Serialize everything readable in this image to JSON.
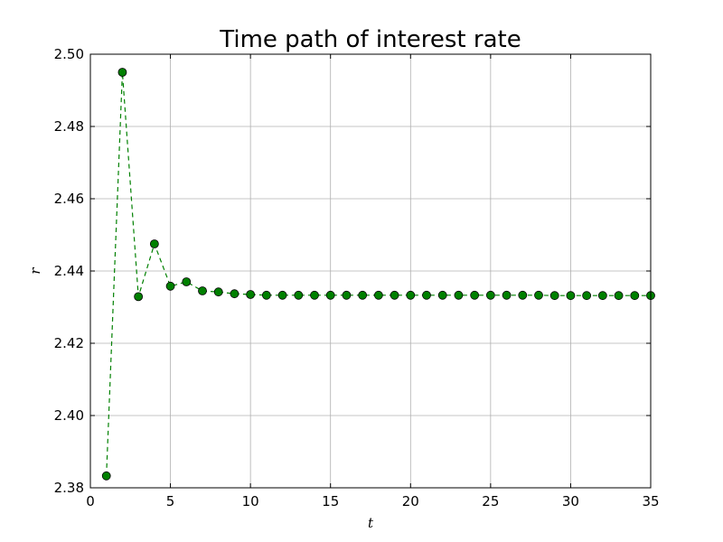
{
  "chart_data": {
    "type": "line",
    "title": "Time path of interest rate",
    "xlabel": "t",
    "ylabel": "r",
    "xlim": [
      0,
      35
    ],
    "ylim": [
      2.38,
      2.5
    ],
    "xticks": [
      0,
      5,
      10,
      15,
      20,
      25,
      30,
      35
    ],
    "yticks": [
      2.38,
      2.4,
      2.42,
      2.44,
      2.46,
      2.48,
      2.5
    ],
    "xtick_labels": [
      "0",
      "5",
      "10",
      "15",
      "20",
      "25",
      "30",
      "35"
    ],
    "ytick_labels": [
      "2.38",
      "2.40",
      "2.42",
      "2.44",
      "2.46",
      "2.48",
      "2.50"
    ],
    "grid": true,
    "line_style": "dashed",
    "marker": "circle",
    "color": "#008000",
    "marker_edge_color": "#000000",
    "series": [
      {
        "name": "",
        "x": [
          1,
          2,
          3,
          4,
          5,
          6,
          7,
          8,
          9,
          10,
          11,
          12,
          13,
          14,
          15,
          16,
          17,
          18,
          19,
          20,
          21,
          22,
          23,
          24,
          25,
          26,
          27,
          28,
          29,
          30,
          31,
          32,
          33,
          34,
          35
        ],
        "values": [
          2.3833,
          2.495,
          2.4329,
          2.4475,
          2.4358,
          2.437,
          2.4345,
          2.4342,
          2.4337,
          2.4335,
          2.4333,
          2.4333,
          2.4333,
          2.4333,
          2.4333,
          2.4333,
          2.4333,
          2.4333,
          2.4333,
          2.4333,
          2.4333,
          2.4333,
          2.4333,
          2.4333,
          2.4333,
          2.4333,
          2.4333,
          2.4333,
          2.4332,
          2.4332,
          2.4332,
          2.4332,
          2.4332,
          2.4332,
          2.4332
        ]
      }
    ]
  }
}
